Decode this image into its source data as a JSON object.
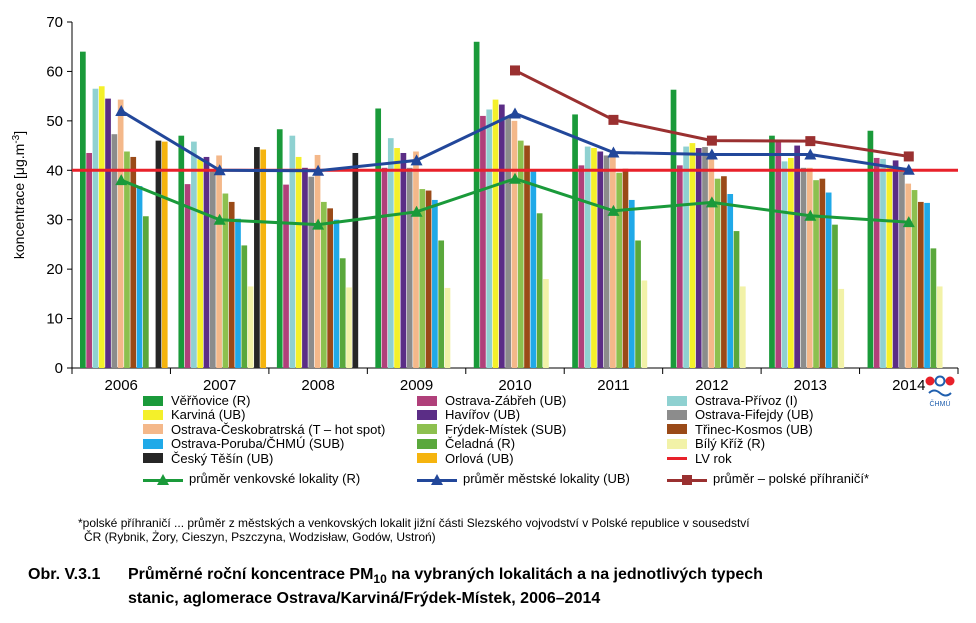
{
  "chart_data": {
    "type": "bar+line",
    "ylabel": "koncentrace [µg.m-3]",
    "ylabel_parts": [
      "koncentrace [μg.m",
      "-3",
      "]"
    ],
    "ylim": [
      0,
      70
    ],
    "yticks": [
      0,
      10,
      20,
      30,
      40,
      50,
      60,
      70
    ],
    "categories": [
      "2006",
      "2007",
      "2008",
      "2009",
      "2010",
      "2011",
      "2012",
      "2013",
      "2014"
    ],
    "bar_series": [
      {
        "name": "Věřňovice (R)",
        "color": "#1a9a3a",
        "values": [
          64,
          47,
          48.3,
          52.5,
          66,
          51.3,
          56.3,
          47,
          48
        ]
      },
      {
        "name": "Ostrava-Zábřeh (UB)",
        "color": "#b0407a",
        "values": [
          43.5,
          37.2,
          37.1,
          40.5,
          51,
          41,
          41,
          46,
          42.5
        ]
      },
      {
        "name": "Ostrava-Přívoz (I)",
        "color": "#8fd1d1",
        "values": [
          56.5,
          45.8,
          47,
          46.5,
          52.3,
          44.8,
          44.8,
          41.8,
          42.3
        ]
      },
      {
        "name": "Karviná (UB)",
        "color": "#f4f02a",
        "values": [
          57,
          42.2,
          42.7,
          44.5,
          54.3,
          44.5,
          45.5,
          42.5,
          41
        ]
      },
      {
        "name": "Havířov (UB)",
        "color": "#5b2d86",
        "values": [
          54.5,
          42.7,
          40.5,
          43.5,
          53.3,
          43.8,
          44.5,
          45,
          42
        ]
      },
      {
        "name": "Ostrava-Fifejdy (UB)",
        "color": "#8c8c8c",
        "values": [
          47.3,
          40,
          38.7,
          40.5,
          50.7,
          43,
          44.7,
          40.5,
          40.5
        ]
      },
      {
        "name": "Ostrava-Českobratrská (T – hot spot)",
        "color": "#f4b88a",
        "values": [
          54.3,
          43,
          43.1,
          43.8,
          50,
          44,
          43,
          40.5,
          37.3
        ]
      },
      {
        "name": "Frýdek-Místek (SUB)",
        "color": "#8dc04f",
        "values": [
          43.8,
          35.3,
          33.6,
          36.2,
          46,
          39.5,
          38.3,
          38,
          36
        ]
      },
      {
        "name": "Třinec-Kosmos (UB)",
        "color": "#9a4a18",
        "values": [
          42.7,
          33.6,
          32.3,
          35.9,
          45,
          40.3,
          38.8,
          38.3,
          33.6
        ]
      },
      {
        "name": "Ostrava-Poruba/ČHMÚ (SUB)",
        "color": "#20a9e8",
        "values": [
          36.8,
          30.2,
          30,
          34,
          39.8,
          34,
          35.2,
          35.5,
          33.4
        ]
      },
      {
        "name": "Čeladná (R)",
        "color": "#5aa83c",
        "values": [
          30.7,
          24.8,
          22.2,
          25.8,
          31.3,
          25.8,
          27.7,
          29,
          24.2
        ]
      },
      {
        "name": "Bílý Kříž (R)",
        "color": "#f2f2a8",
        "values": [
          null,
          16.5,
          16.3,
          16.2,
          18,
          17.7,
          16.5,
          16,
          16.5
        ]
      },
      {
        "name": "Český Těšín (UB)",
        "color": "#262626",
        "values": [
          46,
          44.7,
          43.5,
          null,
          null,
          null,
          null,
          null,
          null
        ]
      },
      {
        "name": "Orlová (UB)",
        "color": "#f5b40e",
        "values": [
          45.8,
          44.2,
          null,
          null,
          null,
          null,
          null,
          null,
          null
        ]
      }
    ],
    "line_series": [
      {
        "name": "LV rok",
        "color": "#e8212a",
        "marker": "none",
        "values": [
          40,
          40,
          40,
          40,
          40,
          40,
          40,
          40,
          40
        ]
      },
      {
        "name": "průměr venkovské lokality (R)",
        "color": "#1a9a3a",
        "marker": "triangle",
        "values": [
          38,
          30,
          29,
          31.6,
          38.3,
          31.8,
          33.5,
          30.8,
          29.5
        ]
      },
      {
        "name": "průměr městské lokality (UB)",
        "color": "#22479a",
        "marker": "triangle",
        "values": [
          52,
          40,
          39.9,
          42,
          51.5,
          43.6,
          43.2,
          43.2,
          40.1
        ]
      },
      {
        "name": "průměr – polské příhraničí*",
        "color": "#9a3030",
        "marker": "square",
        "values": [
          null,
          null,
          null,
          null,
          60.2,
          50.2,
          46,
          45.9,
          42.8
        ]
      }
    ],
    "legend_position": "bottom",
    "grid": false
  },
  "legend_rows": [
    [
      "Věřňovice (R)",
      "Ostrava-Zábřeh (UB)",
      "Ostrava-Přívoz (I)"
    ],
    [
      "Karviná (UB)",
      "Havířov (UB)",
      "Ostrava-Fifejdy (UB)"
    ],
    [
      "Ostrava-Českobratrská (T – hot spot)",
      "Frýdek-Místek (SUB)",
      "Třinec-Kosmos (UB)"
    ],
    [
      "Ostrava-Poruba/ČHMÚ (SUB)",
      "Čeladná (R)",
      "Bílý Kříž (R)"
    ],
    [
      "Český Těšín (UB)",
      "Orlová (UB)",
      "LV rok"
    ],
    [
      "průměr venkovské lokality (R)",
      "průměr městské lokality (UB)",
      "průměr – polské příhraničí*"
    ]
  ],
  "logo": {
    "text": "ČHMÚ",
    "colors": [
      "#e8212a",
      "#1f5fae"
    ]
  },
  "footnote": {
    "line1": "*polské příhraničí ... průměr z městských a venkovských lokalit jižní části Slezského vojvodství v Polské republice v sousedství",
    "line2": "ČR (Rybnik, Żory, Cieszyn, Pszczyna, Wodzisław, Godów, Ustroń)"
  },
  "caption": {
    "prefix": "Obr. V.3.1",
    "line1_a": "Průměrné roční koncentrace PM",
    "line1_sub": "10",
    "line1_b": " na vybraných lokalitách a na jednotlivých typech",
    "line2": "stanic, aglomerace Ostrava/Karviná/Frýdek-Místek, 2006–2014"
  }
}
